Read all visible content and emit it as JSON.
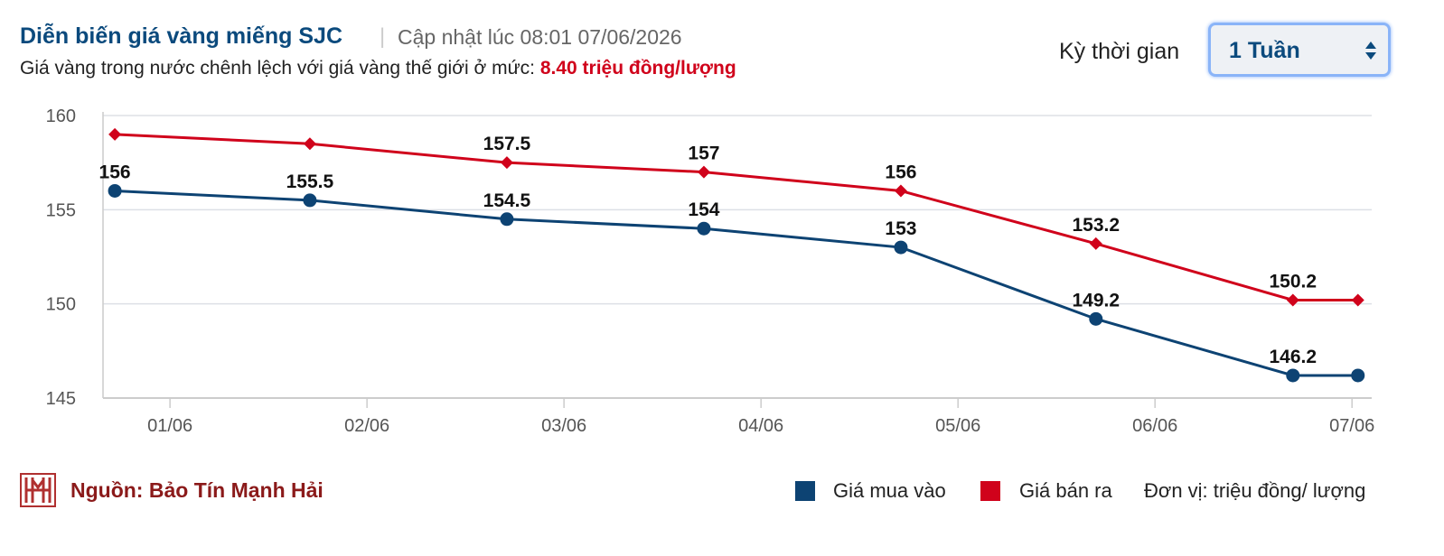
{
  "header": {
    "title": "Diễn biến giá vàng miếng SJC",
    "updated": "Cập nhật lúc 08:01 07/06/2026",
    "subtitle": "Giá vàng trong nước chênh lệch với giá vàng thế giới ở mức:",
    "spread": "8.40 triệu đồng/lượng"
  },
  "period": {
    "label": "Kỳ thời gian",
    "selected": "1 Tuần"
  },
  "chart_data": {
    "type": "line",
    "x": [
      0.72,
      1.71,
      2.71,
      3.71,
      4.71,
      5.7,
      6.7,
      7.03
    ],
    "xlim": [
      0.66,
      7.1
    ],
    "xticks": [
      {
        "value": 1,
        "label": "01/06"
      },
      {
        "value": 2,
        "label": "02/06"
      },
      {
        "value": 3,
        "label": "03/06"
      },
      {
        "value": 4,
        "label": "04/06"
      },
      {
        "value": 5,
        "label": "05/06"
      },
      {
        "value": 6,
        "label": "06/06"
      },
      {
        "value": 7,
        "label": "07/06"
      }
    ],
    "ylim": [
      145,
      160
    ],
    "yticks": [
      145,
      150,
      155,
      160
    ],
    "grid": true,
    "series": [
      {
        "name": "Giá mua vào",
        "color": "#0d4373",
        "marker": "circle",
        "values": [
          156,
          155.5,
          154.5,
          154,
          153,
          149.2,
          146.2,
          146.2
        ],
        "data_labels": [
          true,
          true,
          true,
          true,
          true,
          true,
          true,
          false
        ]
      },
      {
        "name": "Giá bán ra",
        "color": "#d0021b",
        "marker": "diamond",
        "values": [
          159,
          158.5,
          157.5,
          157,
          156,
          153.2,
          150.2,
          150.2
        ],
        "data_labels": [
          false,
          false,
          true,
          true,
          true,
          true,
          true,
          false
        ]
      }
    ]
  },
  "footer": {
    "source": "Nguồn: Bảo Tín Mạnh Hải",
    "unit": "Đơn vị: triệu đồng/ lượng"
  }
}
